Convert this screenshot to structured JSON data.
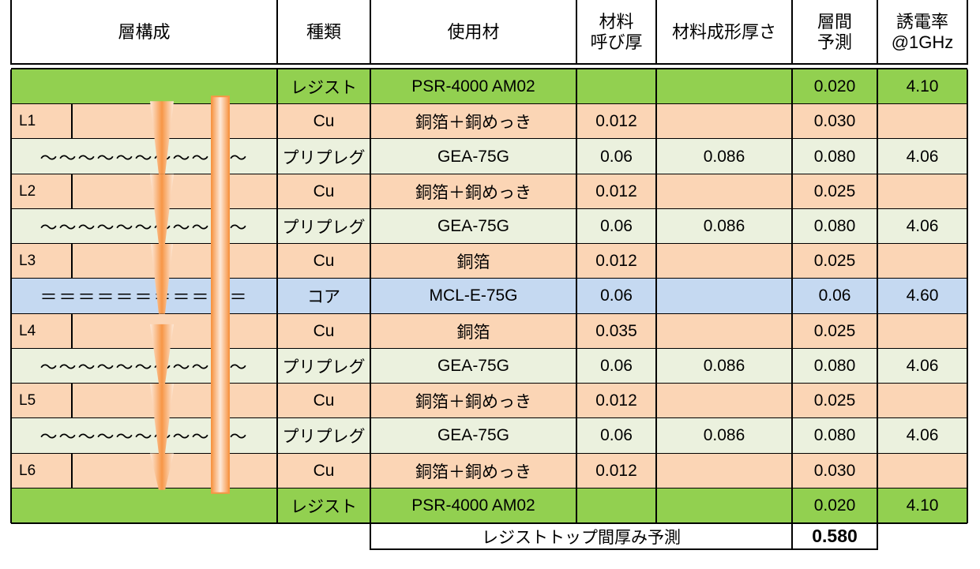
{
  "headers": {
    "layer": "層構成",
    "type": "種類",
    "material": "使用材",
    "nominal": [
      "材料",
      "呼び厚"
    ],
    "formed": "材料成形厚さ",
    "predict": [
      "層間",
      "予測"
    ],
    "dk": [
      "誘電率",
      "@1GHz"
    ]
  },
  "rows": [
    {
      "kind": "resist",
      "layer": "",
      "type": "レジスト",
      "material": "PSR-4000 AM02",
      "nominal": "",
      "formed": "",
      "predict": "0.020",
      "dk": "4.10"
    },
    {
      "kind": "cu",
      "layer": "L1",
      "type": "Cu",
      "material": "銅箔＋銅めっき",
      "nominal": "0.012",
      "formed": "",
      "predict": "0.030",
      "dk": ""
    },
    {
      "kind": "prepreg",
      "layer": "～～～～～～～～～～～",
      "type": "プリプレグ",
      "material": "GEA-75G",
      "nominal": "0.06",
      "formed": "0.086",
      "predict": "0.080",
      "dk": "4.06"
    },
    {
      "kind": "cu",
      "layer": "L2",
      "type": "Cu",
      "material": "銅箔＋銅めっき",
      "nominal": "0.012",
      "formed": "",
      "predict": "0.025",
      "dk": ""
    },
    {
      "kind": "prepreg",
      "layer": "～～～～～～～～～～～",
      "type": "プリプレグ",
      "material": "GEA-75G",
      "nominal": "0.06",
      "formed": "0.086",
      "predict": "0.080",
      "dk": "4.06"
    },
    {
      "kind": "cu",
      "layer": "L3",
      "type": "Cu",
      "material": "銅箔",
      "nominal": "0.012",
      "formed": "",
      "predict": "0.025",
      "dk": ""
    },
    {
      "kind": "core",
      "layer": "＝＝＝＝＝＝＝＝＝＝＝",
      "type": "コア",
      "material": "MCL-E-75G",
      "nominal": "0.06",
      "formed": "",
      "predict": "0.06",
      "dk": "4.60"
    },
    {
      "kind": "cu",
      "layer": "L4",
      "type": "Cu",
      "material": "銅箔",
      "nominal": "0.035",
      "formed": "",
      "predict": "0.025",
      "dk": ""
    },
    {
      "kind": "prepreg",
      "layer": "～～～～～～～～～～～",
      "type": "プリプレグ",
      "material": "GEA-75G",
      "nominal": "0.06",
      "formed": "0.086",
      "predict": "0.080",
      "dk": "4.06"
    },
    {
      "kind": "cu",
      "layer": "L5",
      "type": "Cu",
      "material": "銅箔＋銅めっき",
      "nominal": "0.012",
      "formed": "",
      "predict": "0.025",
      "dk": ""
    },
    {
      "kind": "prepreg",
      "layer": "～～～～～～～～～～～",
      "type": "プリプレグ",
      "material": "GEA-75G",
      "nominal": "0.06",
      "formed": "0.086",
      "predict": "0.080",
      "dk": "4.06"
    },
    {
      "kind": "cu",
      "layer": "L6",
      "type": "Cu",
      "material": "銅箔＋銅めっき",
      "nominal": "0.012",
      "formed": "",
      "predict": "0.030",
      "dk": ""
    },
    {
      "kind": "resist",
      "layer": "",
      "type": "レジスト",
      "material": "PSR-4000 AM02",
      "nominal": "",
      "formed": "",
      "predict": "0.020",
      "dk": "4.10"
    }
  ],
  "total": {
    "label": "レジストトップ間厚み予測",
    "value": "0.580"
  },
  "colors": {
    "resist": "#92d050",
    "cu": "#fbd5b5",
    "prepreg": "#ebf1de",
    "core": "#c5d9f1",
    "via": "#f79646",
    "via_light": "#fde9d9"
  }
}
